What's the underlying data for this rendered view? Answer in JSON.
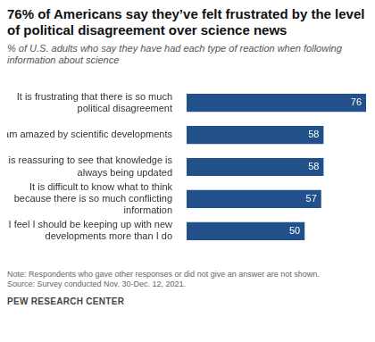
{
  "chart_data": {
    "type": "bar",
    "orientation": "horizontal",
    "title": "76% of Americans say they’ve felt frustrated by the level of political disagreement over science news",
    "subtitle": "% of U.S. adults who say they have had each type of reaction when following information about science",
    "categories": [
      "It is frustrating that there is so much political disagreement",
      "I am amazed by scientific developments",
      "It is reassuring to see that knowledge is always being updated",
      "It is difficult to know what to think because there is so much conflicting information",
      "I feel I should be keeping up with new developments more than I do"
    ],
    "values": [
      76,
      58,
      58,
      57,
      50
    ],
    "color": "#21508a",
    "xlim": [
      0,
      76
    ],
    "grid": false,
    "tick_labels": "y",
    "data_labels": true,
    "note": "Note: Respondents who gave other responses or did not give an answer are not shown.",
    "source": "Source: Survey conducted Nov. 30-Dec. 12, 2021.",
    "footer": "PEW RESEARCH CENTER"
  }
}
